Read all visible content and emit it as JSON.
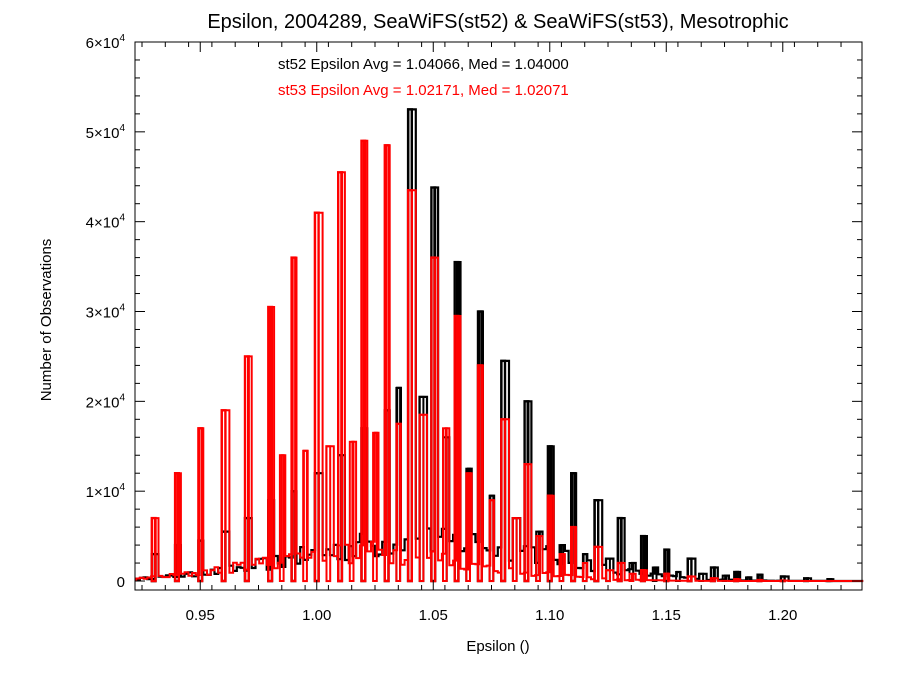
{
  "chart_data": {
    "type": "bar",
    "title": "Epsilon, 2004289, SeaWiFS(st52) & SeaWiFS(st53), Mesotrophic",
    "xlabel": "Epsilon ()",
    "ylabel": "Number of Observations",
    "xlim": [
      0.922,
      1.234
    ],
    "ylim": [
      -1000,
      60000
    ],
    "x_ticks": [
      0.95,
      1.0,
      1.05,
      1.1,
      1.15,
      1.2
    ],
    "x_tick_labels": [
      "0.95",
      "1.00",
      "1.05",
      "1.10",
      "1.15",
      "1.20"
    ],
    "y_ticks": [
      {
        "value": 0,
        "mant": "0",
        "exp": ""
      },
      {
        "value": 10000,
        "mant": "1×10",
        "exp": "4"
      },
      {
        "value": 20000,
        "mant": "2×10",
        "exp": "4"
      },
      {
        "value": 30000,
        "mant": "3×10",
        "exp": "4"
      },
      {
        "value": 40000,
        "mant": "4×10",
        "exp": "4"
      },
      {
        "value": 50000,
        "mant": "5×10",
        "exp": "4"
      },
      {
        "value": 60000,
        "mant": "6×10",
        "exp": "4"
      }
    ],
    "annotations": [
      {
        "text": "st52 Epsilon Avg = 1.04066, Med = 1.04000",
        "color": "#000000"
      },
      {
        "text": "st53 Epsilon Avg = 1.02171, Med = 1.02071",
        "color": "#ff0000"
      }
    ],
    "series": [
      {
        "name": "st52",
        "color": "#000000",
        "spikes": [
          [
            0.93,
            3000
          ],
          [
            0.94,
            4000
          ],
          [
            0.95,
            4500
          ],
          [
            0.96,
            5500
          ],
          [
            0.97,
            7000
          ],
          [
            0.98,
            9000
          ],
          [
            0.99,
            10000
          ],
          [
            1.0,
            12000
          ],
          [
            1.01,
            14000
          ],
          [
            1.02,
            17000
          ],
          [
            1.03,
            19000
          ],
          [
            1.04,
            52500
          ],
          [
            1.05,
            43800
          ],
          [
            1.06,
            35500
          ],
          [
            1.07,
            30000
          ],
          [
            1.08,
            24500
          ],
          [
            1.09,
            20000
          ],
          [
            1.1,
            15000
          ],
          [
            1.11,
            12000
          ],
          [
            1.12,
            9000
          ],
          [
            1.13,
            7000
          ],
          [
            1.14,
            5000
          ],
          [
            1.15,
            3500
          ],
          [
            1.16,
            2500
          ],
          [
            1.17,
            1500
          ],
          [
            1.18,
            1000
          ],
          [
            1.19,
            700
          ],
          [
            1.2,
            500
          ],
          [
            1.21,
            300
          ],
          [
            1.22,
            200
          ]
        ],
        "minor_peaks": [
          [
            1.035,
            21500
          ],
          [
            1.045,
            20500
          ],
          [
            1.055,
            16000
          ],
          [
            1.065,
            12500
          ],
          [
            1.075,
            9500
          ],
          [
            1.085,
            7000
          ],
          [
            1.095,
            5500
          ],
          [
            1.105,
            4000
          ],
          [
            1.115,
            3000
          ],
          [
            1.125,
            2500
          ],
          [
            1.135,
            2000
          ],
          [
            1.145,
            1500
          ],
          [
            1.155,
            1000
          ],
          [
            1.165,
            800
          ],
          [
            1.175,
            600
          ],
          [
            1.185,
            400
          ]
        ]
      },
      {
        "name": "st53",
        "color": "#ff0000",
        "spikes": [
          [
            0.93,
            7000
          ],
          [
            0.94,
            12000
          ],
          [
            0.95,
            17000
          ],
          [
            0.96,
            19000
          ],
          [
            0.97,
            25000
          ],
          [
            0.98,
            30500
          ],
          [
            0.99,
            36000
          ],
          [
            1.0,
            41000
          ],
          [
            1.01,
            45500
          ],
          [
            1.02,
            49000
          ],
          [
            1.03,
            48500
          ],
          [
            1.04,
            43500
          ],
          [
            1.05,
            36000
          ],
          [
            1.06,
            29500
          ],
          [
            1.07,
            24000
          ],
          [
            1.08,
            18000
          ],
          [
            1.09,
            13000
          ],
          [
            1.1,
            9500
          ],
          [
            1.11,
            6000
          ],
          [
            1.12,
            3800
          ],
          [
            1.13,
            2000
          ],
          [
            1.14,
            1200
          ],
          [
            1.15,
            800
          ],
          [
            1.16,
            500
          ],
          [
            1.17,
            300
          ],
          [
            1.18,
            200
          ],
          [
            1.19,
            100
          ],
          [
            1.2,
            50
          ]
        ],
        "minor_peaks": [
          [
            0.985,
            14000
          ],
          [
            0.995,
            14500
          ],
          [
            1.005,
            15000
          ],
          [
            1.015,
            15500
          ],
          [
            1.025,
            16500
          ],
          [
            1.035,
            17500
          ],
          [
            1.045,
            18500
          ],
          [
            1.055,
            17000
          ],
          [
            1.065,
            12000
          ],
          [
            1.075,
            9000
          ],
          [
            1.085,
            7000
          ],
          [
            1.095,
            5000
          ],
          [
            1.105,
            3000
          ],
          [
            1.115,
            2000
          ],
          [
            1.125,
            1200
          ],
          [
            1.135,
            800
          ]
        ]
      }
    ]
  }
}
